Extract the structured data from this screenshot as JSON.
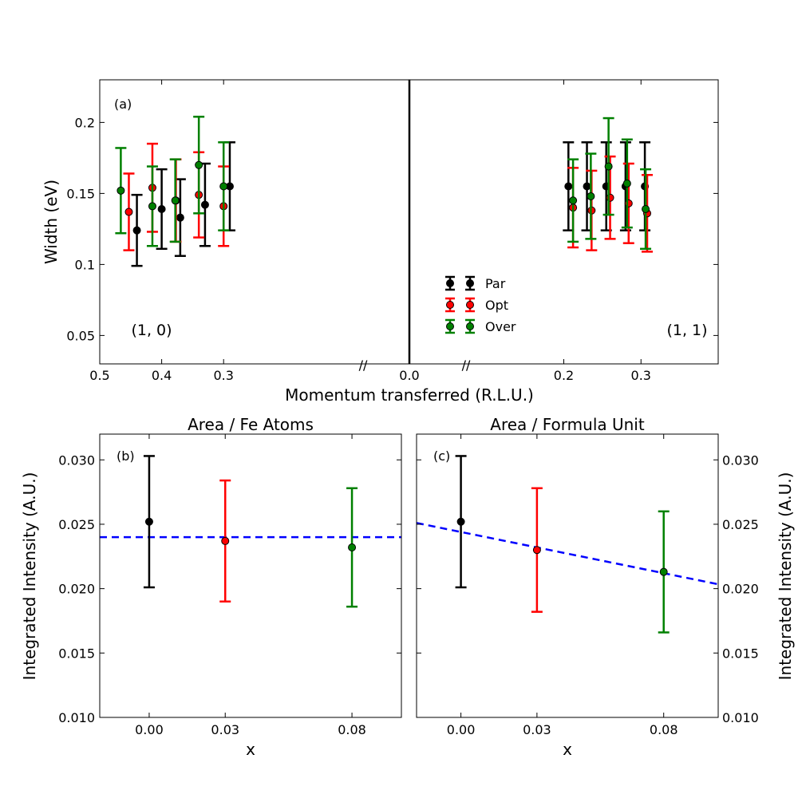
{
  "chart_data": [
    {
      "id": "a",
      "type": "scatter",
      "panel_label": "(a)",
      "ylabel": "Width (eV)",
      "xlabel": "Momentum transferred (R.L.U.)",
      "ylim": [
        0.03,
        0.23
      ],
      "yticks": [
        0.05,
        0.1,
        0.15,
        0.2
      ],
      "ytick_labels": [
        "0.05",
        "0.1",
        "0.15",
        "0.2"
      ],
      "left_xlim": [
        0.5,
        0.0
      ],
      "right_xlim": [
        0.0,
        0.4
      ],
      "left_xticks": [
        0.5,
        0.4,
        0.3
      ],
      "left_xtick_labels": [
        "0.5",
        "0.4",
        "0.3"
      ],
      "right_xticks": [
        0.2,
        0.3
      ],
      "right_xtick_labels": [
        "0.2",
        "0.3"
      ],
      "zero_tick_label": "0.0",
      "break_mark": "//",
      "annotations": [
        "(1, 0)",
        "(1, 1)"
      ],
      "legend": {
        "placement": "lower-center",
        "entries": [
          "Par",
          "Opt",
          "Over"
        ]
      },
      "series": [
        {
          "name": "Par",
          "color": "#000000",
          "left": {
            "x": [
              0.44,
              0.4,
              0.37,
              0.33,
              0.29
            ],
            "y": [
              0.124,
              0.139,
              0.133,
              0.142,
              0.155
            ],
            "err": [
              0.025,
              0.028,
              0.027,
              0.029,
              0.031
            ]
          },
          "right": {
            "x": [
              0.206,
              0.23,
              0.255,
              0.28,
              0.305
            ],
            "y": [
              0.155,
              0.155,
              0.155,
              0.155,
              0.155
            ],
            "err": [
              0.031,
              0.031,
              0.031,
              0.031,
              0.031
            ]
          }
        },
        {
          "name": "Opt",
          "color": "#ff0000",
          "left": {
            "x": [
              0.453,
              0.415,
              0.377,
              0.34,
              0.3
            ],
            "y": [
              0.137,
              0.154,
              0.145,
              0.149,
              0.141
            ],
            "err": [
              0.027,
              0.031,
              0.029,
              0.03,
              0.028
            ]
          },
          "right": {
            "x": [
              0.212,
              0.236,
              0.26,
              0.284,
              0.308
            ],
            "y": [
              0.14,
              0.138,
              0.147,
              0.143,
              0.136
            ],
            "err": [
              0.028,
              0.028,
              0.029,
              0.028,
              0.027
            ]
          }
        },
        {
          "name": "Over",
          "color": "#008000",
          "left": {
            "x": [
              0.466,
              0.415,
              0.378,
              0.34,
              0.3
            ],
            "y": [
              0.152,
              0.141,
              0.145,
              0.17,
              0.155
            ],
            "err": [
              0.03,
              0.028,
              0.029,
              0.034,
              0.031
            ]
          },
          "right": {
            "x": [
              0.212,
              0.235,
              0.258,
              0.282,
              0.306
            ],
            "y": [
              0.145,
              0.148,
              0.169,
              0.157,
              0.139
            ],
            "err": [
              0.029,
              0.03,
              0.034,
              0.031,
              0.028
            ]
          }
        }
      ]
    },
    {
      "id": "b",
      "type": "scatter",
      "title": "Area / Fe Atoms",
      "panel_label": "(b)",
      "xlabel": "x",
      "ylabel": "Integrated Intensity (A.U.)",
      "xlim": [
        -0.0195,
        0.0995
      ],
      "ylim": [
        0.01,
        0.032
      ],
      "xticks": [
        0.0,
        0.03,
        0.08
      ],
      "xtick_labels": [
        "0.00",
        "0.03",
        "0.08"
      ],
      "yticks": [
        0.01,
        0.015,
        0.02,
        0.025,
        0.03
      ],
      "ytick_labels": [
        "0.010",
        "0.015",
        "0.020",
        "0.025",
        "0.030"
      ],
      "points": [
        {
          "x": 0.0,
          "y": 0.0252,
          "err": 0.0051,
          "color": "#000000"
        },
        {
          "x": 0.03,
          "y": 0.0237,
          "err": 0.0047,
          "color": "#ff0000"
        },
        {
          "x": 0.08,
          "y": 0.0232,
          "err": 0.0046,
          "color": "#008000"
        }
      ],
      "fit": {
        "slope": 0.0,
        "intercept": 0.024,
        "color": "#0000ff",
        "style": "dashed"
      }
    },
    {
      "id": "c",
      "type": "scatter",
      "title": "Area / Formula Unit",
      "panel_label": "(c)",
      "xlabel": "x",
      "ylabel": "Integrated Intensity (A.U.)",
      "xlim": [
        -0.0175,
        0.1015
      ],
      "ylim": [
        0.01,
        0.032
      ],
      "xticks": [
        0.0,
        0.03,
        0.08
      ],
      "xtick_labels": [
        "0.00",
        "0.03",
        "0.08"
      ],
      "yticks": [
        0.01,
        0.015,
        0.02,
        0.025,
        0.03
      ],
      "ytick_labels": [
        "0.010",
        "0.015",
        "0.020",
        "0.025",
        "0.030"
      ],
      "points": [
        {
          "x": 0.0,
          "y": 0.0252,
          "err": 0.0051,
          "color": "#000000"
        },
        {
          "x": 0.03,
          "y": 0.023,
          "err": 0.0048,
          "color": "#ff0000"
        },
        {
          "x": 0.08,
          "y": 0.0213,
          "err": 0.0047,
          "color": "#008000"
        }
      ],
      "fit": {
        "slope": -0.04,
        "intercept": 0.0244,
        "color": "#0000ff",
        "style": "dashed"
      }
    }
  ]
}
